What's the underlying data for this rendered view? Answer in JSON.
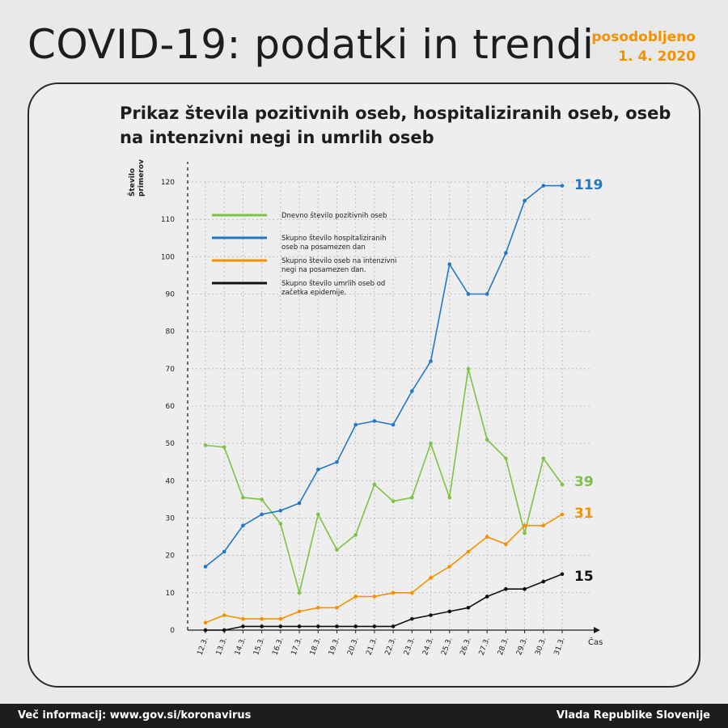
{
  "header": {
    "title": "COVID-19: podatki in trendi",
    "updated_line1": "posodobljeno",
    "updated_line2": "1. 4. 2020"
  },
  "footer": {
    "info": "Več informacij: www.gov.si/koronavirus",
    "source": "Vlada Republike Slovenije"
  },
  "chart_data": {
    "type": "line",
    "title": "Prikaz števila pozitivnih oseb, hospitaliziranih oseb, oseb na intenzivni negi in umrlih oseb",
    "ylabel": "Število primerov",
    "xlabel": "Čas",
    "ylim": [
      0,
      120
    ],
    "yticks": [
      0,
      10,
      20,
      30,
      40,
      50,
      60,
      70,
      80,
      90,
      100,
      110,
      120
    ],
    "grid": true,
    "legend_position": "top-left",
    "categories": [
      "12.3.",
      "13.3.",
      "14.3.",
      "15.3.",
      "16.3.",
      "17.3.",
      "18.3.",
      "19.3.",
      "20.3.",
      "21.3.",
      "22.3.",
      "23.3.",
      "24.3.",
      "25.3.",
      "26.3.",
      "27.3.",
      "28.3.",
      "29.3.",
      "30.3.",
      "31.3."
    ],
    "series": [
      {
        "name": "Dnevno število pozitivnih oseb",
        "legend_lines": [
          "Dnevno število pozitivnih oseb"
        ],
        "color": "#7dc243",
        "values": [
          49.5,
          49,
          35.5,
          35,
          28.5,
          10,
          31,
          21.5,
          25.5,
          39,
          34.5,
          35.5,
          50,
          35.5,
          70,
          51,
          46,
          26,
          46,
          39
        ],
        "end_label": "39"
      },
      {
        "name": "Skupno število hospitaliziranih oseb na posamezen dan",
        "legend_lines": [
          "Skupno število hospitaliziranih",
          "oseb na posamezen dan"
        ],
        "color": "#1f78c8",
        "values": [
          17,
          21,
          28,
          31,
          32,
          34,
          43,
          45,
          55,
          56,
          55,
          64,
          72,
          98,
          90,
          90,
          101,
          115,
          119,
          119
        ],
        "end_label": "119"
      },
      {
        "name": "Skupno število oseb na intenzivni negi na posamezen dan.",
        "legend_lines": [
          "Skupno število oseb na intenzivni",
          "negi na posamezen dan."
        ],
        "color": "#f39200",
        "values": [
          2,
          4,
          3,
          3,
          3,
          5,
          6,
          6,
          9,
          9,
          10,
          10,
          14,
          17,
          21,
          25,
          23,
          28,
          28,
          31
        ],
        "end_label": "31"
      },
      {
        "name": "Skupno število umrlih oseb od začetka epidemije.",
        "legend_lines": [
          "Skupno število umrlih oseb od",
          "začetka epidemije."
        ],
        "color": "#111111",
        "values": [
          0,
          0,
          1,
          1,
          1,
          1,
          1,
          1,
          1,
          1,
          1,
          3,
          4,
          5,
          6,
          9,
          11,
          11,
          13,
          15
        ],
        "end_label": "15"
      }
    ]
  }
}
